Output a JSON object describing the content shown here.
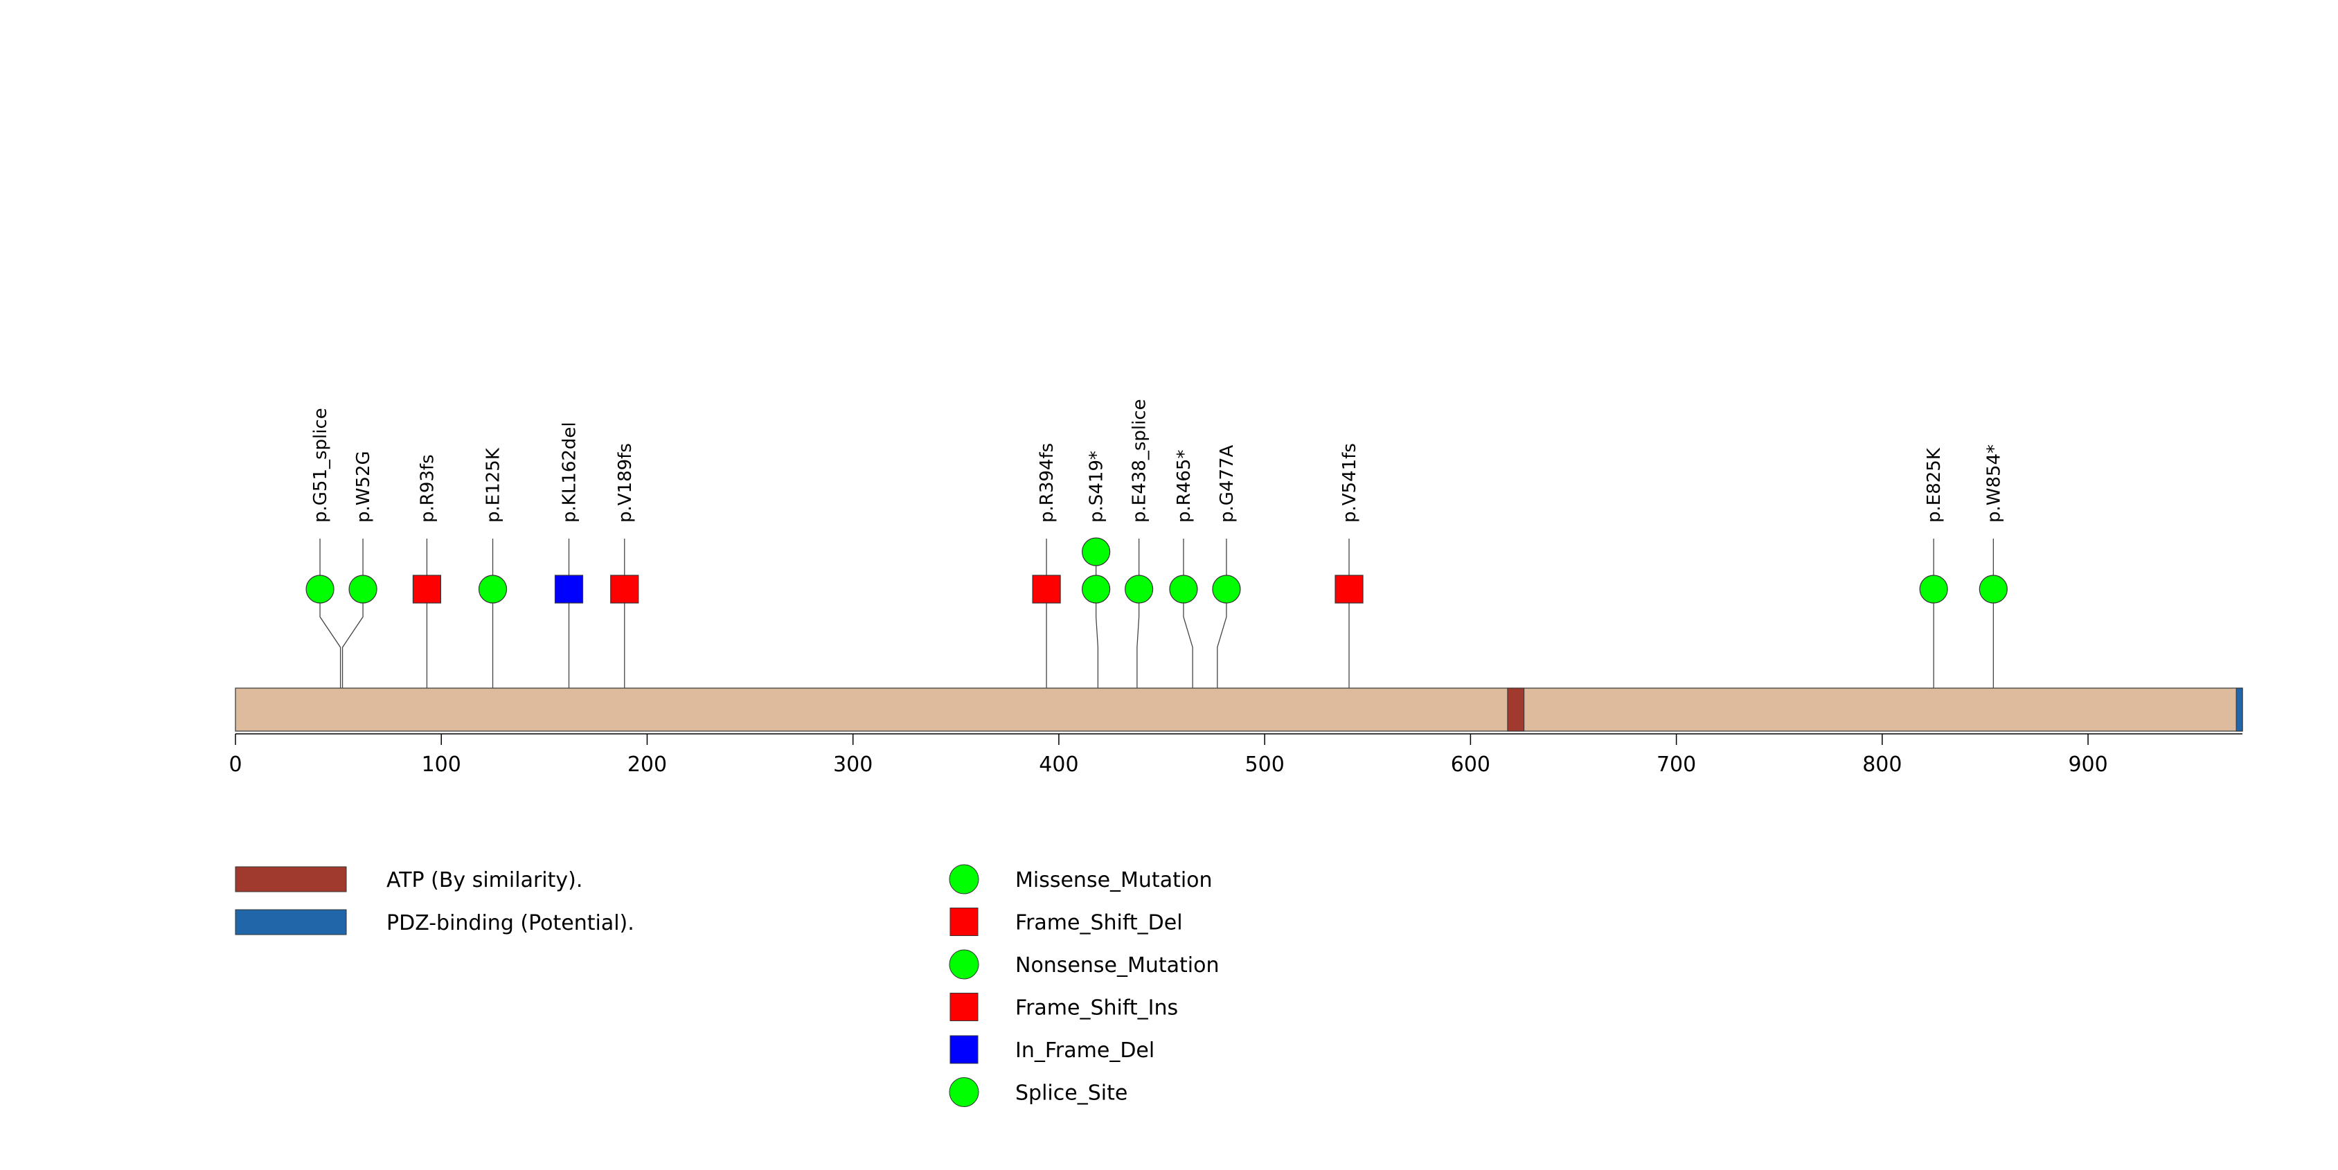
{
  "protein": {
    "length": 975,
    "color": "#DEBB9C",
    "domains": [
      {
        "start": 618,
        "end": 626,
        "color": "#A0392E"
      },
      {
        "start": 972,
        "end": 975,
        "color": "#2166A8"
      }
    ]
  },
  "axis": {
    "ticks": [
      0,
      100,
      200,
      300,
      400,
      500,
      600,
      700,
      800,
      900
    ]
  },
  "mutations": [
    {
      "label": "p.G51_splice",
      "pos": 51,
      "type": "Splice_Site",
      "count": 1
    },
    {
      "label": "p.W52G",
      "pos": 52,
      "type": "Missense_Mutation",
      "count": 1
    },
    {
      "label": "p.R93fs",
      "pos": 93,
      "type": "Frame_Shift_Del",
      "count": 1
    },
    {
      "label": "p.E125K",
      "pos": 125,
      "type": "Missense_Mutation",
      "count": 1
    },
    {
      "label": "p.KL162del",
      "pos": 162,
      "type": "In_Frame_Del",
      "count": 1
    },
    {
      "label": "p.V189fs",
      "pos": 189,
      "type": "Frame_Shift_Del",
      "count": 1
    },
    {
      "label": "p.R394fs",
      "pos": 394,
      "type": "Frame_Shift_Del",
      "count": 1
    },
    {
      "label": "p.S419*",
      "pos": 419,
      "type": "Nonsense_Mutation",
      "count": 2
    },
    {
      "label": "p.E438_splice",
      "pos": 438,
      "type": "Splice_Site",
      "count": 1
    },
    {
      "label": "p.R465*",
      "pos": 465,
      "type": "Nonsense_Mutation",
      "count": 1
    },
    {
      "label": "p.G477A",
      "pos": 477,
      "type": "Missense_Mutation",
      "count": 1
    },
    {
      "label": "p.V541fs",
      "pos": 541,
      "type": "Frame_Shift_Del",
      "count": 1
    },
    {
      "label": "p.E825K",
      "pos": 825,
      "type": "Missense_Mutation",
      "count": 1
    },
    {
      "label": "p.W854*",
      "pos": 854,
      "type": "Nonsense_Mutation",
      "count": 1
    }
  ],
  "legend": {
    "domains": [
      {
        "label": "ATP (By similarity).",
        "color": "#A0392E"
      },
      {
        "label": "PDZ-binding (Potential).",
        "color": "#2166A8"
      }
    ],
    "mutation_types": [
      {
        "label": "Missense_Mutation",
        "shape": "circle",
        "color": "#00FF00"
      },
      {
        "label": "Frame_Shift_Del",
        "shape": "square",
        "color": "#FF0000"
      },
      {
        "label": "Nonsense_Mutation",
        "shape": "circle",
        "color": "#00FF00"
      },
      {
        "label": "Frame_Shift_Ins",
        "shape": "square",
        "color": "#FF0000"
      },
      {
        "label": "In_Frame_Del",
        "shape": "square",
        "color": "#0000FF"
      },
      {
        "label": "Splice_Site",
        "shape": "circle",
        "color": "#00FF00"
      }
    ]
  }
}
